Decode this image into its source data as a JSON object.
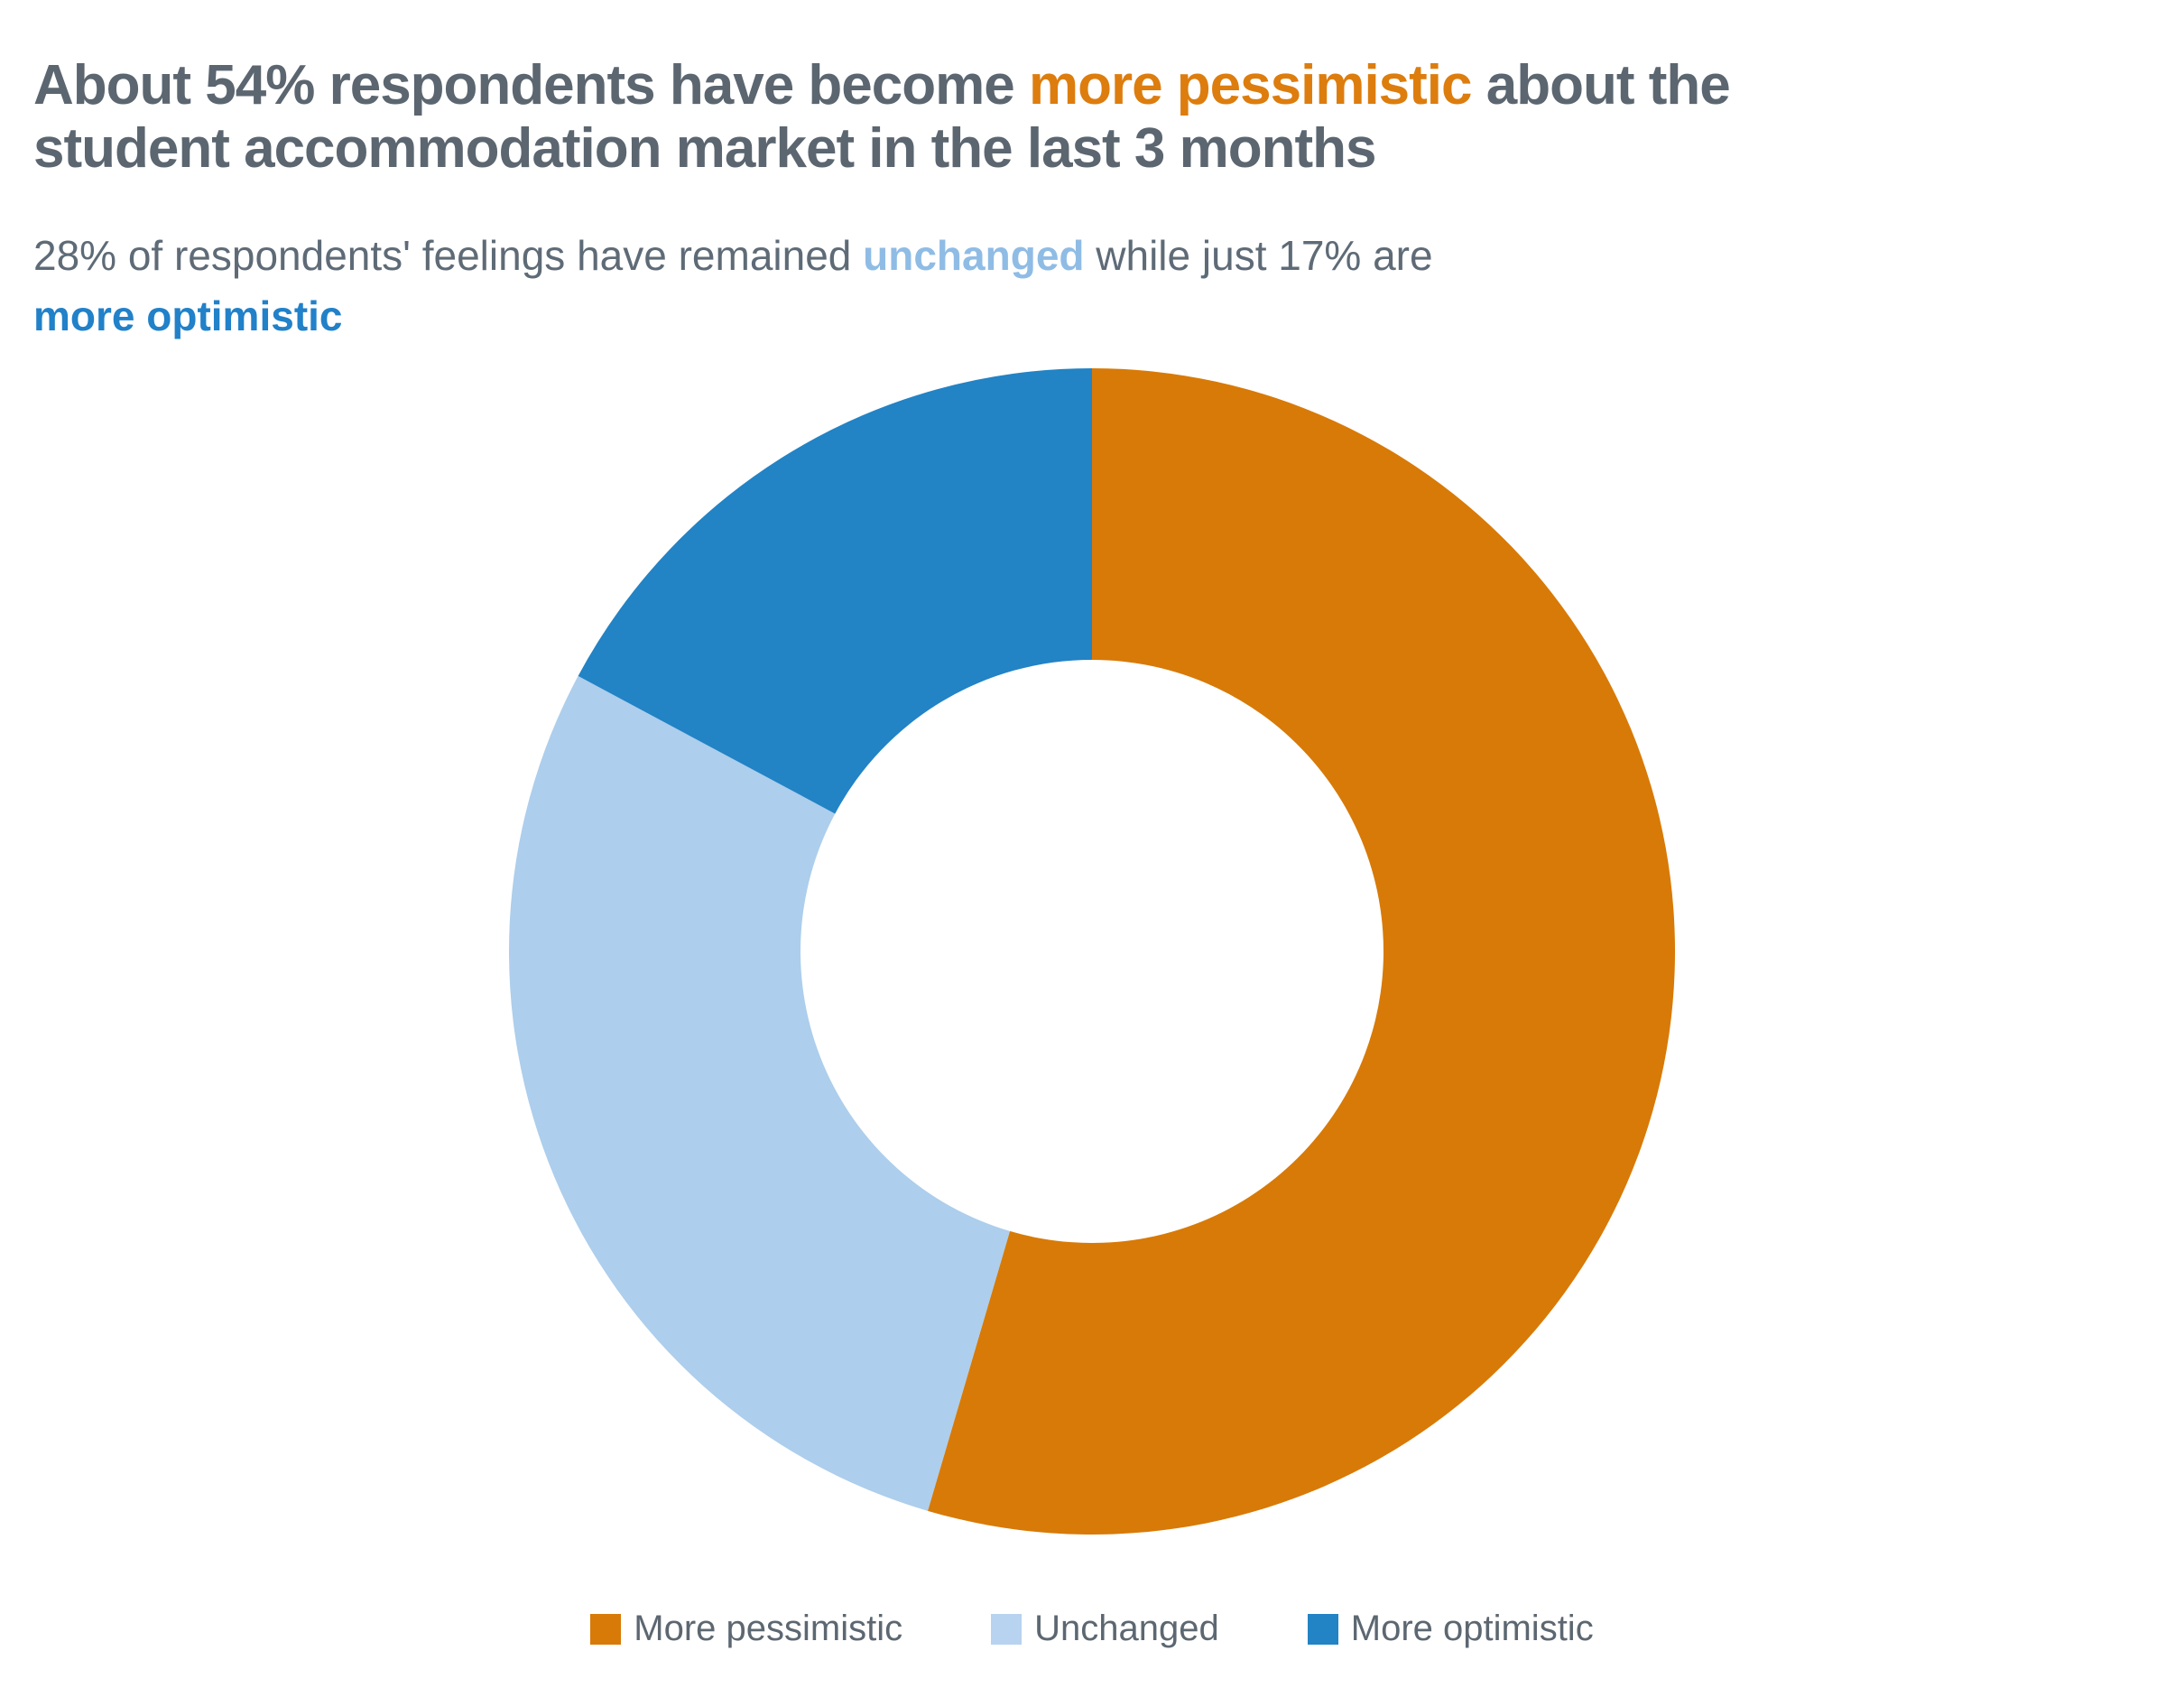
{
  "page": {
    "background": "#ffffff"
  },
  "title": {
    "pre": "About 54% respondents have become ",
    "highlight": "more pessimistic",
    "post": " about the\nstudent accommodation market in the last 3 months",
    "color": "#5B6670",
    "highlight_color": "#DD7D0E"
  },
  "subtitle": {
    "pre": "28% of respondents' feelings have remained ",
    "highlight_unchanged": "unchanged",
    "mid": " while just 17% are\n",
    "highlight_optimistic": "more optimistic",
    "color": "#5E6B77",
    "unchanged_color": "#8FBCE5",
    "optimistic_color": "#2181C9"
  },
  "chart_data": {
    "type": "pie",
    "subtype": "donut",
    "inner_radius_ratio": 0.5,
    "start_angle_deg": 0,
    "direction": "clockwise",
    "categories": [
      "More pessimistic",
      "Unchanged",
      "More optimistic"
    ],
    "values": [
      54,
      28,
      17
    ],
    "unit": "%",
    "colors": [
      "#D87A07",
      "#ADCEEC",
      "#2283C5"
    ],
    "title": "About 54% respondents have become more pessimistic about the student accommodation market in the last 3 months",
    "subtitle": "28% of respondents' feelings have remained unchanged while just 17% are more optimistic",
    "legend_position": "bottom",
    "grid": false
  },
  "legend": {
    "items": [
      {
        "label": "More pessimistic",
        "color": "#D87A07"
      },
      {
        "label": "Unchanged",
        "color": "#B7D3F0"
      },
      {
        "label": "More optimistic",
        "color": "#2283C5"
      }
    ],
    "text_color": "#5C6771"
  }
}
